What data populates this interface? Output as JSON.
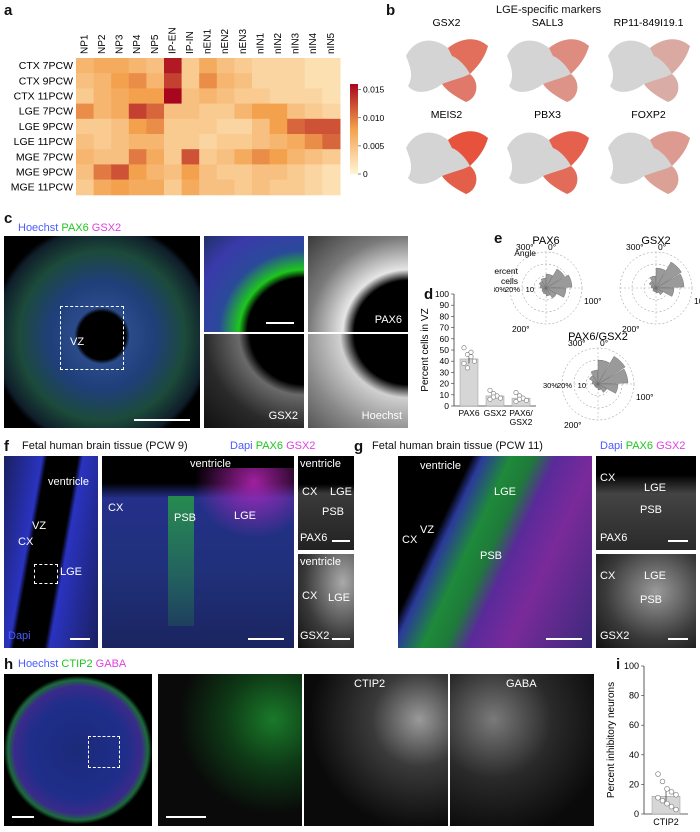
{
  "panels": {
    "a": "a",
    "b": "b",
    "c": "c",
    "d": "d",
    "e": "e",
    "f": "f",
    "g": "g",
    "h": "h",
    "i": "i"
  },
  "heatmap": {
    "columns": [
      "NP1",
      "NP2",
      "NP3",
      "NP4",
      "NP5",
      "IP-EN",
      "IP-IN",
      "nEN1",
      "nEN2",
      "nEN3",
      "nIN1",
      "nIN2",
      "nIN3",
      "nIN4",
      "nIN5"
    ],
    "rows": [
      "CTX 7PCW",
      "CTX 9PCW",
      "CTX 11PCW",
      "LGE 7PCW",
      "LGE 9PCW",
      "LGE 11PCW",
      "MGE 7PCW",
      "MGE 9PCW",
      "MGE 11PCW"
    ],
    "values": [
      [
        0.006,
        0.007,
        0.007,
        0.006,
        0.005,
        0.015,
        0.004,
        0.007,
        0.005,
        0.004,
        0.003,
        0.003,
        0.003,
        0.002,
        0.002
      ],
      [
        0.005,
        0.006,
        0.008,
        0.009,
        0.006,
        0.013,
        0.004,
        0.009,
        0.006,
        0.005,
        0.003,
        0.003,
        0.003,
        0.002,
        0.002
      ],
      [
        0.004,
        0.006,
        0.007,
        0.008,
        0.008,
        0.016,
        0.005,
        0.006,
        0.005,
        0.004,
        0.004,
        0.003,
        0.003,
        0.003,
        0.002
      ],
      [
        0.009,
        0.006,
        0.007,
        0.013,
        0.011,
        0.005,
        0.005,
        0.004,
        0.004,
        0.006,
        0.008,
        0.008,
        0.005,
        0.004,
        0.003
      ],
      [
        0.004,
        0.004,
        0.005,
        0.008,
        0.009,
        0.004,
        0.004,
        0.004,
        0.003,
        0.003,
        0.005,
        0.008,
        0.011,
        0.012,
        0.012
      ],
      [
        0.005,
        0.004,
        0.005,
        0.006,
        0.006,
        0.004,
        0.004,
        0.003,
        0.004,
        0.004,
        0.005,
        0.006,
        0.007,
        0.009,
        0.011
      ],
      [
        0.006,
        0.005,
        0.005,
        0.01,
        0.007,
        0.004,
        0.012,
        0.004,
        0.005,
        0.007,
        0.009,
        0.008,
        0.006,
        0.005,
        0.004
      ],
      [
        0.005,
        0.01,
        0.012,
        0.008,
        0.006,
        0.005,
        0.008,
        0.005,
        0.004,
        0.004,
        0.005,
        0.005,
        0.004,
        0.003,
        0.002
      ],
      [
        0.004,
        0.007,
        0.008,
        0.007,
        0.007,
        0.004,
        0.007,
        0.005,
        0.005,
        0.004,
        0.005,
        0.004,
        0.004,
        0.003,
        0.002
      ]
    ],
    "colorbar_ticks": [
      "0.015",
      "0.010",
      "0.005",
      "0"
    ],
    "vmax": 0.016,
    "colors": {
      "low": "#fff5d4",
      "mid": "#f4a14e",
      "high": "#a8061e"
    }
  },
  "umap": {
    "title": "LGE-specific markers",
    "genes": [
      "GSX2",
      "SALL3",
      "RP11-849I19.1",
      "MEIS2",
      "PBX3",
      "FOXP2"
    ],
    "colors": {
      "base": "#d4d4d4",
      "marker": "#e8442a"
    }
  },
  "c": {
    "legend": [
      {
        "text": "Hoechst",
        "color": "#4b5bff"
      },
      {
        "text": "PAX6",
        "color": "#1ec61e"
      },
      {
        "text": "GSX2",
        "color": "#e040e0"
      }
    ],
    "vz": "VZ",
    "tiles": [
      "PAX6",
      "GSX2",
      "Hoechst"
    ]
  },
  "chart_data": {
    "type": "bar",
    "categories": [
      "PAX6",
      "GSX2",
      "PAX6/\nGSX2"
    ],
    "values": [
      42,
      9,
      7
    ],
    "errors": [
      4,
      2,
      2
    ],
    "points": [
      [
        52,
        46,
        44,
        40,
        38,
        34,
        48
      ],
      [
        14,
        11,
        9,
        7,
        6,
        8
      ],
      [
        12,
        9,
        7,
        5,
        4,
        6
      ]
    ],
    "ylabel": "Percent cells in VZ",
    "yticks": [
      0,
      10,
      20,
      30,
      40,
      50,
      60,
      70,
      80,
      90,
      100
    ],
    "ylim": [
      0,
      100
    ]
  },
  "polar": {
    "plots": [
      {
        "title": "PAX6",
        "angle_label": "Angle",
        "cells_label": "Percent\ncells",
        "ticks": [
          "30%",
          "20%",
          "10"
        ],
        "angles": [
          "300°",
          "0°",
          "100°",
          "200°"
        ]
      },
      {
        "title": "GSX2",
        "angles": [
          "300°",
          "0°",
          "100°",
          "200°"
        ]
      },
      {
        "title": "PAX6/GSX2",
        "ticks": [
          "30%",
          "20%",
          "10"
        ],
        "angles": [
          "300°",
          "0°",
          "100°",
          "200°"
        ]
      }
    ]
  },
  "f": {
    "title": "Fetal human brain tissue (PCW 9)",
    "legend": [
      {
        "text": "Dapi",
        "color": "#4b5bff"
      },
      {
        "text": "PAX6",
        "color": "#1ec61e"
      },
      {
        "text": "GSX2",
        "color": "#e040e0"
      }
    ],
    "overview": {
      "ventricle": "ventricle",
      "vz": "VZ",
      "cx": "CX",
      "lge": "LGE",
      "dapi": "Dapi"
    },
    "main": {
      "ventricle": "ventricle",
      "cx": "CX",
      "psb": "PSB",
      "lge": "LGE"
    },
    "side_top": {
      "ventricle": "ventricle",
      "cx": "CX",
      "lge": "LGE",
      "psb": "PSB",
      "channel": "PAX6"
    },
    "side_bottom": {
      "ventricle": "ventricle",
      "cx": "CX",
      "lge": "LGE",
      "channel": "GSX2"
    }
  },
  "g": {
    "title": "Fetal human brain tissue (PCW 11)",
    "legend": [
      {
        "text": "Dapi",
        "color": "#4b5bff"
      },
      {
        "text": "PAX6",
        "color": "#1ec61e"
      },
      {
        "text": "GSX2",
        "color": "#e040e0"
      }
    ],
    "main": {
      "ventricle": "ventricle",
      "lge": "LGE",
      "vz": "VZ",
      "cx": "CX",
      "psb": "PSB"
    },
    "side_top": {
      "cx": "CX",
      "lge": "LGE",
      "psb": "PSB",
      "channel": "PAX6"
    },
    "side_bottom": {
      "cx": "CX",
      "lge": "LGE",
      "psb": "PSB",
      "channel": "GSX2"
    }
  },
  "h": {
    "legend": [
      {
        "text": "Hoechst",
        "color": "#4b5bff"
      },
      {
        "text": "CTIP2",
        "color": "#1ec61e"
      },
      {
        "text": "GABA",
        "color": "#e040e0"
      }
    ],
    "tiles": [
      "CTIP2",
      "GABA"
    ]
  },
  "chart_i": {
    "type": "bar",
    "categories": [
      "CTIP2"
    ],
    "values": [
      12
    ],
    "error": 4,
    "points": [
      27,
      22,
      17,
      15,
      13,
      11,
      9,
      7,
      5,
      3
    ],
    "ylabel": "Percent inhibitory neurons",
    "yticks": [
      0,
      20,
      40,
      60,
      80,
      100
    ],
    "ylim": [
      0,
      100
    ]
  }
}
